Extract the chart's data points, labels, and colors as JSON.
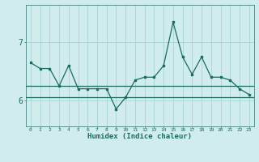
{
  "x": [
    0,
    1,
    2,
    3,
    4,
    5,
    6,
    7,
    8,
    9,
    10,
    11,
    12,
    13,
    14,
    15,
    16,
    17,
    18,
    19,
    20,
    21,
    22,
    23
  ],
  "y": [
    6.65,
    6.55,
    6.55,
    6.25,
    6.6,
    6.2,
    6.2,
    6.2,
    6.2,
    5.85,
    6.05,
    6.35,
    6.4,
    6.4,
    6.6,
    7.35,
    6.75,
    6.45,
    6.75,
    6.4,
    6.4,
    6.35,
    6.2,
    6.1
  ],
  "hlines": [
    6.25,
    6.05
  ],
  "line_color": "#1a6b5e",
  "bg_color": "#d0ecec",
  "grid_color": "#aad4d4",
  "axis_color": "#5a9090",
  "xlabel": "Humidex (Indice chaleur)",
  "yticks": [
    6,
    7
  ],
  "xtick_labels": [
    "0",
    "1",
    "2",
    "3",
    "4",
    "5",
    "6",
    "7",
    "8",
    "9",
    "10",
    "11",
    "12",
    "13",
    "14",
    "15",
    "16",
    "17",
    "18",
    "19",
    "20",
    "21",
    "22",
    "23"
  ],
  "xlim": [
    -0.5,
    23.5
  ],
  "ylim": [
    5.55,
    7.65
  ],
  "figsize": [
    3.2,
    2.0
  ],
  "dpi": 100
}
